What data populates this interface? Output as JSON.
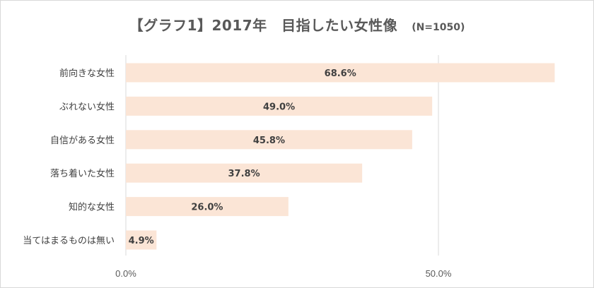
{
  "chart_data": {
    "type": "bar",
    "orientation": "horizontal",
    "title": "【グラフ1】2017年　目指したい女性像",
    "subtitle": "(N=1050)",
    "categories": [
      "前向きな女性",
      "ぶれない女性",
      "自信がある女性",
      "落ち着いた女性",
      "知的な女性",
      "当てはまるものは無い"
    ],
    "values": [
      68.6,
      49.0,
      45.8,
      37.8,
      26.0,
      4.9
    ],
    "data_labels": [
      "68.6%",
      "49.0%",
      "45.8%",
      "37.8%",
      "26.0%",
      "4.9%"
    ],
    "x_ticks": [
      0,
      50
    ],
    "x_tick_labels": [
      "0.0%",
      "50.0%"
    ],
    "xlim": [
      0,
      70
    ],
    "grid": true,
    "bar_color": "#fbe5d6",
    "grid_color": "#d9d9d9"
  }
}
